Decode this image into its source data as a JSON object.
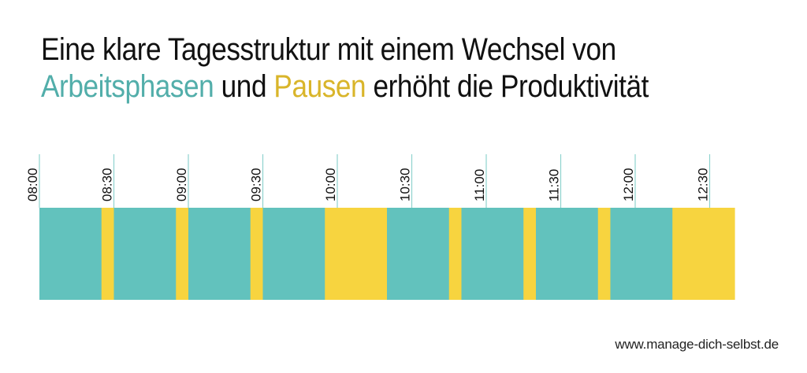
{
  "title": {
    "line1": "Eine klare Tagesstruktur mit einem Wechsel von",
    "line2_work": "Arbeitsphasen",
    "line2_and": " und ",
    "line2_break": "Pausen",
    "line2_rest": " erhöht die Produktivität"
  },
  "colors": {
    "work": "#62c2bd",
    "break": "#f7d43f",
    "title_work": "#52aeaa",
    "title_break": "#d9b52a",
    "tick_line": "#8fd3cf",
    "text": "#111111"
  },
  "chart_data": {
    "type": "bar",
    "orientation": "horizontal-timeline",
    "x_unit": "minutes",
    "x_start": "08:00",
    "x_end": "13:00",
    "ticks": [
      "08:00",
      "08:30",
      "09:00",
      "09:30",
      "10:00",
      "10:30",
      "11:00",
      "11:30",
      "12:00",
      "12:30"
    ],
    "segments": [
      {
        "type": "work",
        "start": "08:00",
        "end": "08:25"
      },
      {
        "type": "break",
        "start": "08:25",
        "end": "08:30"
      },
      {
        "type": "work",
        "start": "08:30",
        "end": "08:55"
      },
      {
        "type": "break",
        "start": "08:55",
        "end": "09:00"
      },
      {
        "type": "work",
        "start": "09:00",
        "end": "09:25"
      },
      {
        "type": "break",
        "start": "09:25",
        "end": "09:30"
      },
      {
        "type": "work",
        "start": "09:30",
        "end": "09:55"
      },
      {
        "type": "break",
        "start": "09:55",
        "end": "10:20"
      },
      {
        "type": "work",
        "start": "10:20",
        "end": "10:45"
      },
      {
        "type": "break",
        "start": "10:45",
        "end": "10:50"
      },
      {
        "type": "work",
        "start": "10:50",
        "end": "11:15"
      },
      {
        "type": "break",
        "start": "11:15",
        "end": "11:20"
      },
      {
        "type": "work",
        "start": "11:20",
        "end": "11:45"
      },
      {
        "type": "break",
        "start": "11:45",
        "end": "11:50"
      },
      {
        "type": "work",
        "start": "11:50",
        "end": "12:15"
      },
      {
        "type": "break",
        "start": "12:15",
        "end": "12:40"
      }
    ],
    "xlabel": "",
    "ylabel": "",
    "grid": false
  },
  "footer": {
    "website": "www.manage-dich-selbst.de"
  }
}
